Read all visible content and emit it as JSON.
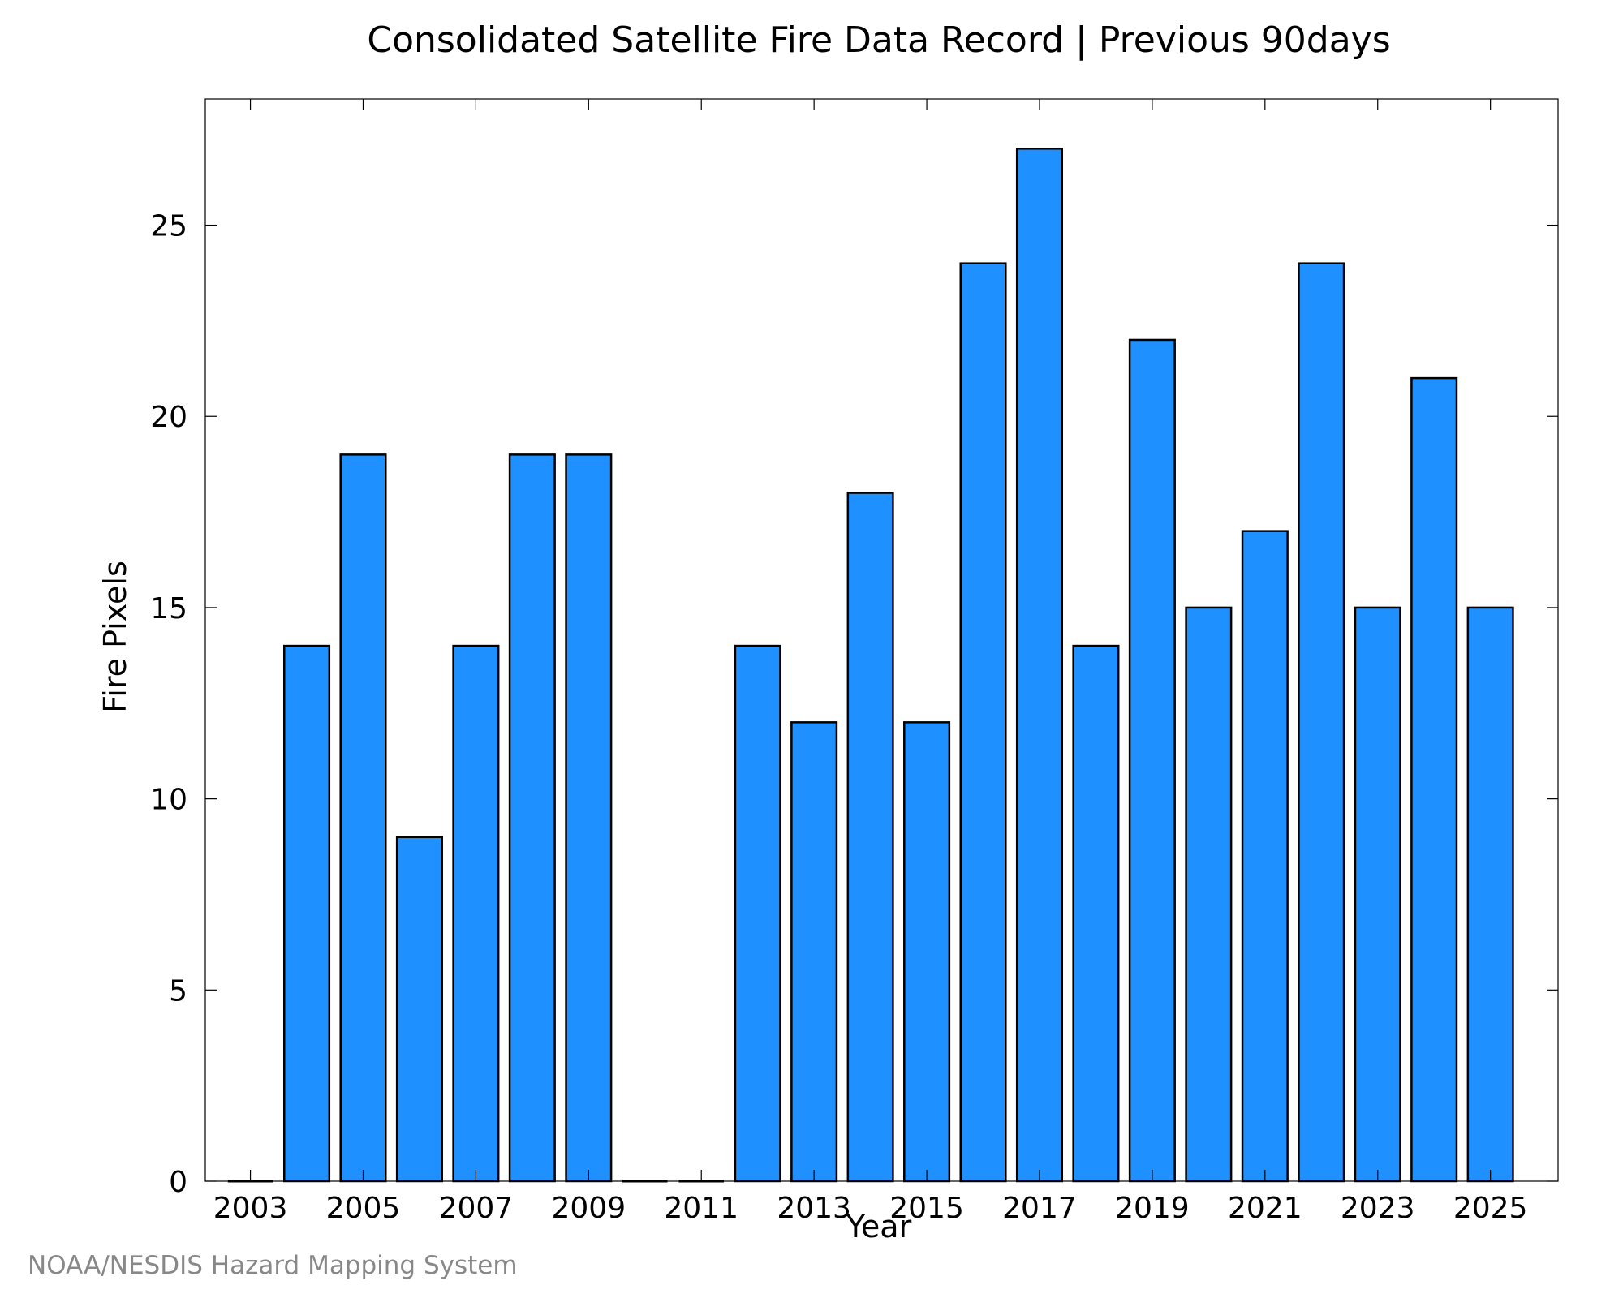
{
  "chart_data": {
    "type": "bar",
    "title": "Consolidated Satellite Fire Data Record | Previous 90days",
    "xlabel": "Year",
    "ylabel": "Fire Pixels",
    "categories": [
      "2003",
      "2004",
      "2005",
      "2006",
      "2007",
      "2008",
      "2009",
      "2010",
      "2011",
      "2012",
      "2013",
      "2014",
      "2015",
      "2016",
      "2017",
      "2018",
      "2019",
      "2020",
      "2021",
      "2022",
      "2023",
      "2024",
      "2025"
    ],
    "values": [
      0,
      14,
      19,
      9,
      14,
      19,
      19,
      0,
      0,
      14,
      12,
      18,
      12,
      24,
      27,
      14,
      22,
      15,
      17,
      24,
      15,
      21,
      15
    ],
    "xticks": [
      "2003",
      "2005",
      "2007",
      "2009",
      "2011",
      "2013",
      "2015",
      "2017",
      "2019",
      "2021",
      "2023",
      "2025"
    ],
    "yticks": [
      0,
      5,
      10,
      15,
      20,
      25
    ],
    "ylim": [
      0,
      28.3
    ],
    "xlim": [
      2002.2,
      2026.2
    ],
    "bar_color": "#1e90ff",
    "edge_color": "#000000",
    "grid": false,
    "legend": "none"
  },
  "footer": {
    "credit": "NOAA/NESDIS Hazard Mapping System"
  }
}
